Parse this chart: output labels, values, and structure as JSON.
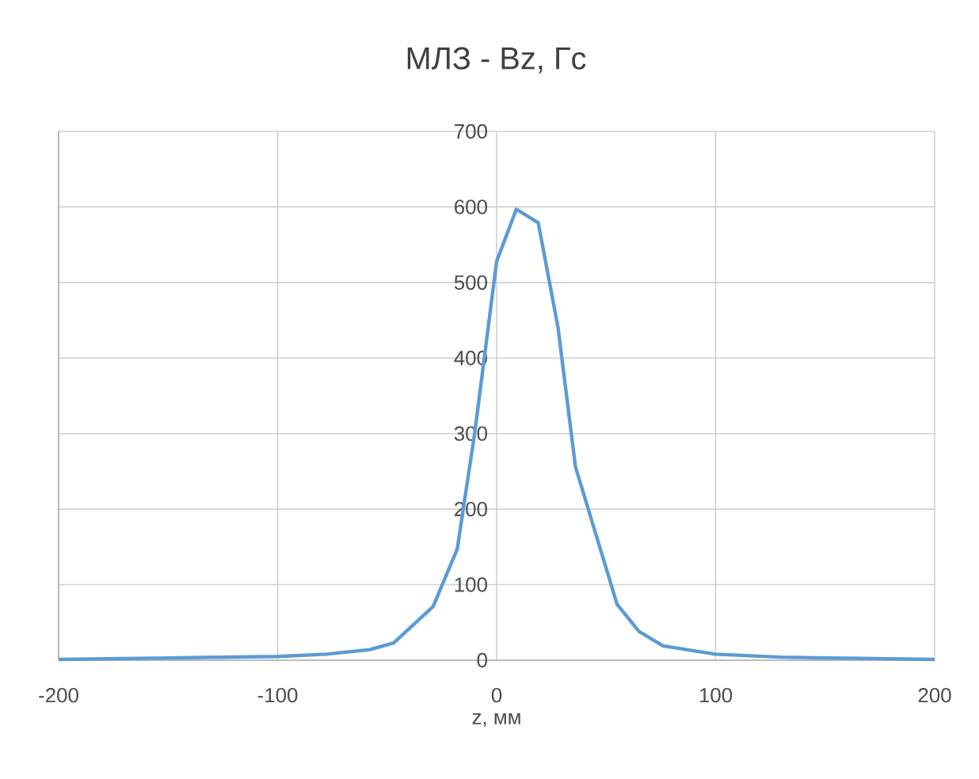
{
  "chart_data": {
    "type": "line",
    "title": "МЛЗ - Bz, Гс",
    "xlabel": "z, мм",
    "x": [
      -200,
      -150,
      -100,
      -78,
      -58,
      -47,
      -29,
      -18,
      -10,
      0,
      9,
      19,
      28,
      36,
      55,
      65,
      76,
      100,
      130,
      200
    ],
    "values": [
      1,
      3,
      5,
      8,
      14,
      23,
      71,
      147,
      301,
      528,
      597,
      579,
      441,
      256,
      74,
      38,
      19,
      8,
      4,
      1
    ],
    "color": "#5b9bd5",
    "xlim": [
      -200,
      200
    ],
    "xticks": [
      -200,
      -100,
      0,
      100,
      200
    ],
    "ylim": [
      0,
      700
    ],
    "yticks": [
      0,
      100,
      200,
      300,
      400,
      500,
      600,
      700
    ],
    "grid": true,
    "marker": "none",
    "line_style": "solid"
  }
}
